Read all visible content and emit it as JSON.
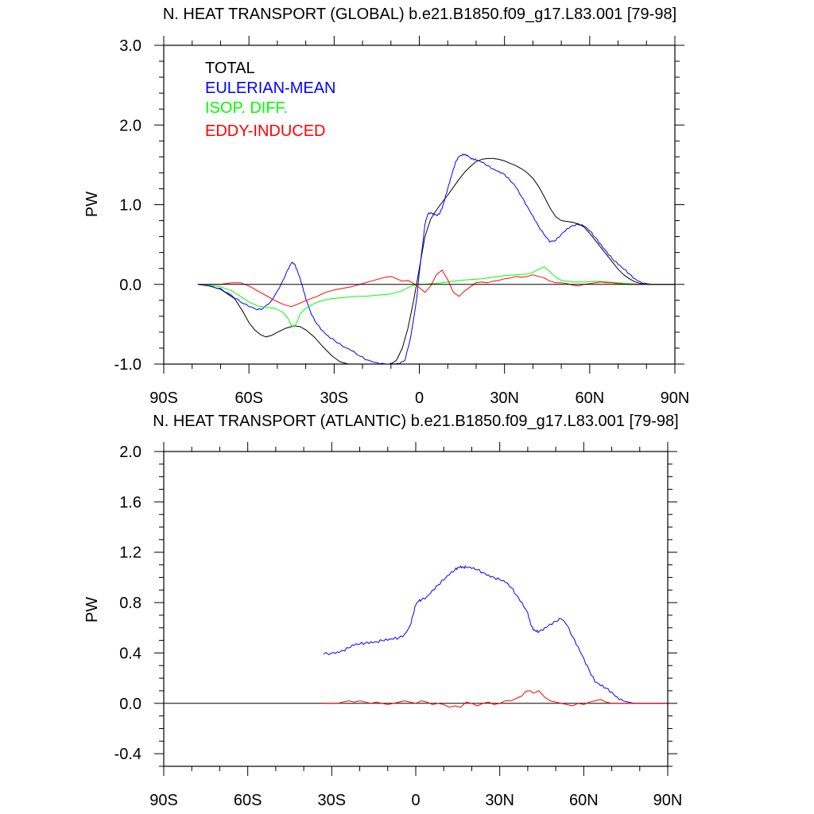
{
  "chart_data": [
    {
      "type": "line",
      "title": "N. HEAT TRANSPORT (GLOBAL) b.e21.B1850.f09_g17.L83.001 [79-98]",
      "xlabel": "",
      "ylabel": "PW",
      "xlim": [
        -90,
        90
      ],
      "ylim": [
        -1.0,
        3.0
      ],
      "x_ticks": [
        -90,
        -60,
        -30,
        0,
        30,
        60,
        90
      ],
      "x_tick_labels": [
        "90S",
        "60S",
        "30S",
        "0",
        "30N",
        "60N",
        "90N"
      ],
      "y_ticks": [
        -1.0,
        0.0,
        1.0,
        2.0,
        3.0
      ],
      "y_tick_labels": [
        "-1.0",
        "0.0",
        "1.0",
        "2.0",
        "3.0"
      ],
      "legend_position": "top-left",
      "series": [
        {
          "name": "TOTAL",
          "color": "#000000",
          "x": [
            -78,
            -74,
            -70,
            -65,
            -62,
            -60,
            -58,
            -56,
            -54,
            -52,
            -50,
            -47,
            -44,
            -42,
            -40,
            -37,
            -34,
            -31,
            -28,
            -25,
            -22,
            -19,
            -16,
            -13,
            -10,
            -8,
            -6,
            -4,
            -2,
            0,
            2,
            4,
            6,
            8,
            10,
            12,
            14,
            16,
            18,
            20,
            22,
            24,
            26,
            28,
            30,
            32,
            34,
            36,
            38,
            40,
            42,
            44,
            46,
            48,
            50,
            52,
            54,
            56,
            58,
            60,
            62,
            64,
            66,
            68,
            70,
            72,
            74,
            76,
            78,
            80,
            82,
            84,
            86,
            88,
            90
          ],
          "y": [
            0.0,
            -0.02,
            -0.06,
            -0.18,
            -0.35,
            -0.48,
            -0.57,
            -0.63,
            -0.66,
            -0.64,
            -0.6,
            -0.55,
            -0.52,
            -0.53,
            -0.57,
            -0.66,
            -0.78,
            -0.89,
            -0.97,
            -1.0,
            -1.0,
            -1.0,
            -1.0,
            -1.0,
            -1.0,
            -0.95,
            -0.8,
            -0.55,
            -0.2,
            0.2,
            0.6,
            0.82,
            0.93,
            1.03,
            1.12,
            1.22,
            1.32,
            1.41,
            1.48,
            1.54,
            1.57,
            1.58,
            1.58,
            1.57,
            1.55,
            1.52,
            1.49,
            1.45,
            1.4,
            1.33,
            1.23,
            1.1,
            0.96,
            0.85,
            0.8,
            0.79,
            0.78,
            0.76,
            0.72,
            0.64,
            0.55,
            0.46,
            0.37,
            0.28,
            0.19,
            0.12,
            0.07,
            0.03,
            0.01,
            0.0,
            0.0,
            0.0,
            0.0,
            0.0,
            0.0
          ]
        },
        {
          "name": "EULERIAN-MEAN",
          "color": "#0000ff",
          "x": [
            -78,
            -74,
            -70,
            -66,
            -63,
            -60,
            -57,
            -55,
            -52,
            -50,
            -48,
            -46,
            -45,
            -44,
            -43,
            -42,
            -41,
            -40,
            -38,
            -36,
            -34,
            -32,
            -30,
            -27,
            -24,
            -21,
            -18,
            -15,
            -12,
            -9,
            -7,
            -5,
            -3,
            -1,
            0,
            1,
            2,
            3,
            4,
            5,
            6,
            7,
            8,
            9,
            10,
            11,
            12,
            13,
            14,
            15,
            16,
            17,
            18,
            19,
            20,
            22,
            24,
            26,
            28,
            30,
            32,
            34,
            36,
            38,
            40,
            42,
            44,
            46,
            48,
            50,
            52,
            54,
            56,
            58,
            60,
            62,
            64,
            66,
            68,
            70,
            72,
            74,
            76,
            78,
            80,
            82,
            84,
            86,
            88,
            90
          ],
          "y": [
            0.0,
            -0.02,
            -0.05,
            -0.14,
            -0.22,
            -0.28,
            -0.32,
            -0.3,
            -0.2,
            -0.08,
            0.05,
            0.2,
            0.27,
            0.26,
            0.18,
            0.08,
            -0.04,
            -0.18,
            -0.38,
            -0.5,
            -0.58,
            -0.65,
            -0.7,
            -0.78,
            -0.83,
            -0.9,
            -0.95,
            -0.98,
            -1.0,
            -1.0,
            -1.0,
            -0.95,
            -0.65,
            -0.2,
            0.15,
            0.45,
            0.75,
            0.88,
            0.9,
            0.89,
            0.87,
            0.88,
            0.95,
            1.07,
            1.2,
            1.33,
            1.45,
            1.55,
            1.6,
            1.62,
            1.63,
            1.62,
            1.59,
            1.57,
            1.56,
            1.53,
            1.49,
            1.45,
            1.42,
            1.38,
            1.3,
            1.22,
            1.1,
            0.98,
            0.86,
            0.73,
            0.62,
            0.53,
            0.55,
            0.63,
            0.7,
            0.74,
            0.75,
            0.73,
            0.67,
            0.59,
            0.5,
            0.41,
            0.32,
            0.25,
            0.19,
            0.13,
            0.07,
            0.03,
            0.01,
            0.0,
            0.0,
            0.0,
            0.0,
            0.0
          ],
          "dense": true
        },
        {
          "name": "ISOP. DIFF.",
          "color": "#00ff00",
          "x": [
            -78,
            -74,
            -70,
            -66,
            -63,
            -60,
            -57,
            -54,
            -51,
            -48,
            -46,
            -45,
            -44,
            -43,
            -42,
            -40,
            -37,
            -34,
            -31,
            -28,
            -25,
            -22,
            -19,
            -16,
            -13,
            -10,
            -8,
            -6,
            -4,
            -2,
            0,
            2,
            4,
            6,
            8,
            10,
            14,
            18,
            22,
            26,
            30,
            34,
            38,
            40,
            42,
            44,
            46,
            48,
            50,
            54,
            58,
            62,
            66,
            70,
            74,
            78,
            82,
            86,
            90
          ],
          "y": [
            0.0,
            -0.01,
            -0.03,
            -0.08,
            -0.15,
            -0.22,
            -0.27,
            -0.29,
            -0.3,
            -0.35,
            -0.44,
            -0.52,
            -0.53,
            -0.47,
            -0.37,
            -0.3,
            -0.24,
            -0.2,
            -0.18,
            -0.17,
            -0.16,
            -0.15,
            -0.15,
            -0.14,
            -0.13,
            -0.12,
            -0.1,
            -0.08,
            -0.04,
            -0.01,
            0.0,
            0.0,
            0.01,
            0.01,
            0.02,
            0.03,
            0.05,
            0.06,
            0.07,
            0.09,
            0.11,
            0.12,
            0.13,
            0.15,
            0.19,
            0.22,
            0.16,
            0.09,
            0.05,
            0.03,
            0.03,
            0.04,
            0.03,
            0.02,
            0.01,
            0.0,
            0.0,
            0.0,
            0.0
          ]
        },
        {
          "name": "EDDY-INDUCED",
          "color": "#ff0000",
          "x": [
            -78,
            -74,
            -70,
            -66,
            -63,
            -60,
            -57,
            -54,
            -51,
            -48,
            -45,
            -43,
            -41,
            -39,
            -36,
            -33,
            -30,
            -27,
            -24,
            -21,
            -18,
            -15,
            -12,
            -10,
            -8,
            -6,
            -4,
            -2,
            0,
            2,
            4,
            6,
            8,
            10,
            12,
            14,
            16,
            18,
            20,
            22,
            24,
            26,
            28,
            30,
            32,
            34,
            36,
            38,
            40,
            42,
            44,
            46,
            48,
            50,
            52,
            54,
            56,
            58,
            60,
            62,
            64,
            66,
            68,
            70,
            74,
            78,
            82,
            86,
            90
          ],
          "y": [
            0.0,
            0.0,
            0.0,
            0.02,
            0.02,
            -0.02,
            -0.08,
            -0.14,
            -0.2,
            -0.25,
            -0.28,
            -0.25,
            -0.22,
            -0.19,
            -0.15,
            -0.1,
            -0.07,
            -0.05,
            -0.03,
            0.0,
            0.03,
            0.06,
            0.09,
            0.1,
            0.07,
            0.04,
            0.05,
            0.01,
            -0.04,
            -0.1,
            -0.02,
            0.12,
            0.18,
            0.06,
            -0.1,
            -0.15,
            -0.08,
            -0.03,
            0.02,
            0.03,
            0.02,
            0.04,
            0.05,
            0.07,
            0.08,
            0.1,
            0.09,
            0.1,
            0.12,
            0.1,
            0.08,
            0.04,
            0.02,
            0.02,
            0.01,
            -0.01,
            -0.02,
            0.0,
            0.01,
            0.02,
            0.03,
            0.02,
            0.02,
            0.01,
            0.0,
            0.0,
            0.0,
            0.0,
            0.0
          ]
        },
        {
          "name": "zero-line",
          "color": "#000000",
          "x": [
            -78,
            90
          ],
          "y": [
            0.0,
            0.0
          ],
          "legend": false
        }
      ]
    },
    {
      "type": "line",
      "title": "N. HEAT TRANSPORT (ATLANTIC) b.e21.B1850.f09_g17.L83.001 [79-98]",
      "xlabel": "",
      "ylabel": "PW",
      "xlim": [
        -90,
        90
      ],
      "ylim": [
        -0.5,
        2.0
      ],
      "x_ticks": [
        -90,
        -60,
        -30,
        0,
        30,
        60,
        90
      ],
      "x_tick_labels": [
        "90S",
        "60S",
        "30S",
        "0",
        "30N",
        "60N",
        "90N"
      ],
      "y_ticks": [
        -0.4,
        0.0,
        0.4,
        0.8,
        1.2,
        1.6,
        2.0
      ],
      "y_tick_labels": [
        "-0.4",
        "0.0",
        "0.4",
        "0.8",
        "1.2",
        "1.6",
        "2.0"
      ],
      "series": [
        {
          "name": "zero-line",
          "color": "#000000",
          "x": [
            -90,
            90
          ],
          "y": [
            0.0,
            0.0
          ],
          "legend": false
        },
        {
          "name": "EULERIAN-MEAN",
          "color": "#0000ff",
          "x": [
            -33,
            -30,
            -28,
            -26,
            -24,
            -22,
            -20,
            -18,
            -16,
            -14,
            -12,
            -10,
            -8,
            -6,
            -4,
            -2,
            -1,
            0,
            1,
            2,
            4,
            6,
            8,
            10,
            12,
            14,
            15,
            16,
            17,
            18,
            20,
            22,
            24,
            26,
            28,
            30,
            32,
            34,
            36,
            38,
            40,
            41,
            42,
            43,
            44,
            46,
            48,
            50,
            52,
            54,
            56,
            58,
            60,
            62,
            64,
            66,
            68,
            70,
            72,
            74,
            76,
            78,
            80,
            84,
            88,
            90
          ],
          "y": [
            0.39,
            0.4,
            0.41,
            0.42,
            0.44,
            0.46,
            0.47,
            0.48,
            0.49,
            0.49,
            0.5,
            0.5,
            0.51,
            0.52,
            0.55,
            0.62,
            0.7,
            0.78,
            0.81,
            0.82,
            0.85,
            0.9,
            0.94,
            0.98,
            1.02,
            1.06,
            1.08,
            1.09,
            1.08,
            1.08,
            1.07,
            1.06,
            1.04,
            1.02,
            1.0,
            0.98,
            0.96,
            0.92,
            0.86,
            0.8,
            0.72,
            0.63,
            0.58,
            0.57,
            0.57,
            0.6,
            0.63,
            0.65,
            0.67,
            0.62,
            0.53,
            0.45,
            0.36,
            0.26,
            0.17,
            0.14,
            0.12,
            0.09,
            0.05,
            0.02,
            0.01,
            0.0,
            0.0,
            0.0,
            0.0,
            0.0
          ],
          "dense": true
        },
        {
          "name": "EDDY-INDUCED",
          "color": "#ff0000",
          "x": [
            -33,
            -30,
            -28,
            -26,
            -24,
            -22,
            -20,
            -18,
            -16,
            -14,
            -12,
            -10,
            -8,
            -6,
            -4,
            -2,
            0,
            2,
            4,
            6,
            8,
            10,
            12,
            14,
            16,
            18,
            20,
            22,
            24,
            26,
            28,
            30,
            32,
            34,
            36,
            38,
            39,
            40,
            41,
            42,
            44,
            46,
            48,
            50,
            52,
            54,
            56,
            58,
            60,
            62,
            64,
            66,
            68,
            70,
            74,
            78,
            82,
            86,
            90
          ],
          "y": [
            0.0,
            0.0,
            0.0,
            0.01,
            0.02,
            0.01,
            0.02,
            0.01,
            0.0,
            0.01,
            0.0,
            -0.01,
            0.0,
            0.01,
            0.02,
            0.01,
            0.0,
            0.02,
            0.01,
            -0.01,
            0.0,
            -0.01,
            -0.03,
            -0.02,
            -0.03,
            0.01,
            0.0,
            -0.02,
            0.0,
            0.01,
            -0.01,
            0.0,
            0.02,
            0.02,
            0.04,
            0.06,
            0.09,
            0.1,
            0.1,
            0.08,
            0.1,
            0.05,
            0.02,
            0.01,
            0.0,
            -0.01,
            -0.02,
            0.0,
            -0.01,
            0.01,
            0.02,
            0.03,
            0.01,
            0.0,
            0.0,
            0.0,
            0.0,
            0.0,
            0.0
          ]
        }
      ]
    }
  ]
}
